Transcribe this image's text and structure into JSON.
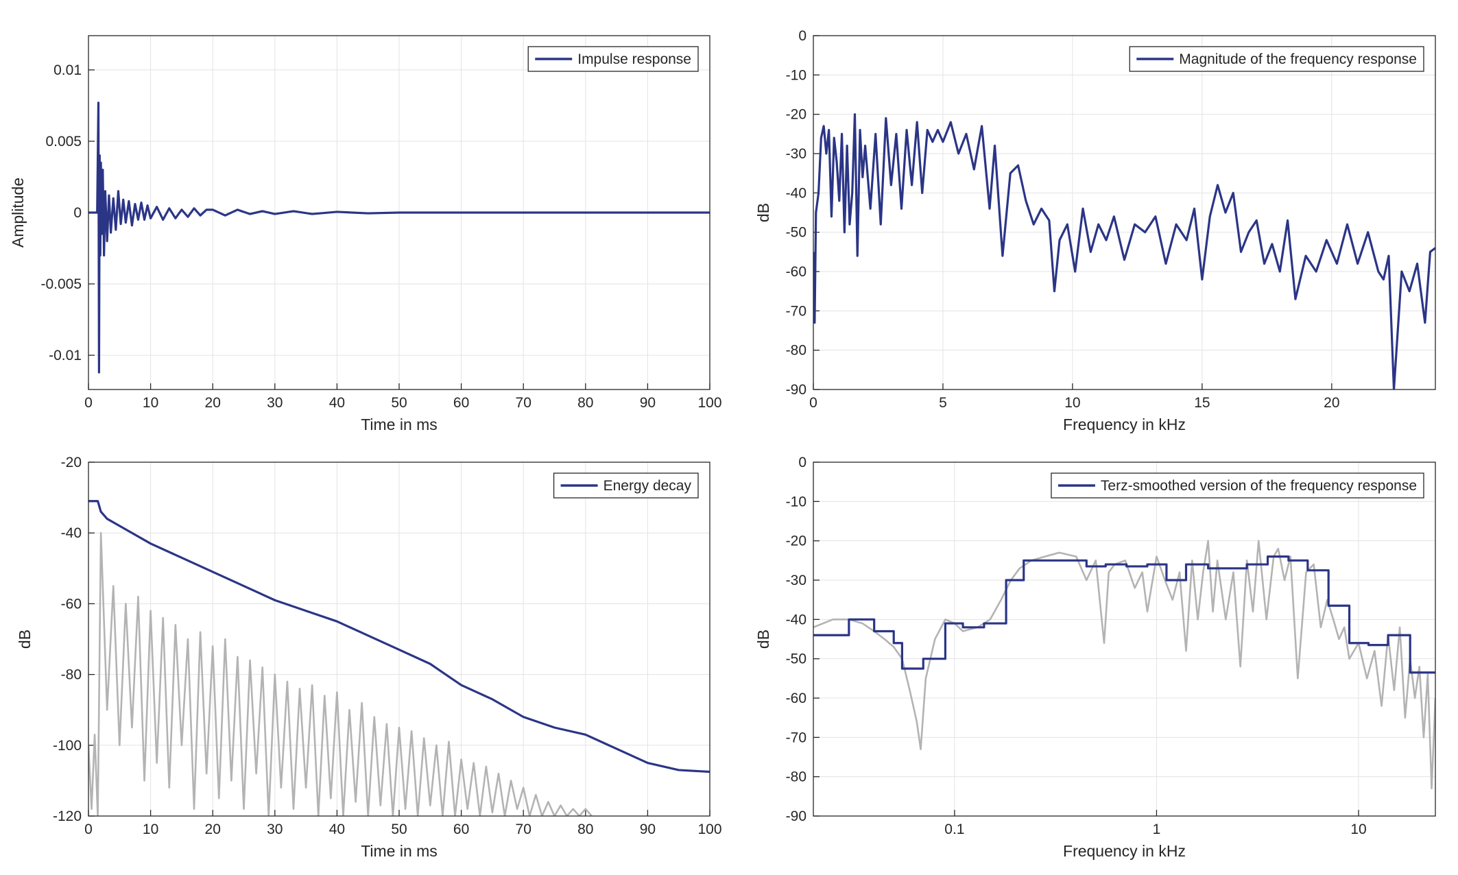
{
  "chart_data": [
    {
      "type": "line",
      "xlabel": "Time in ms",
      "ylabel": "Amplitude",
      "xlim": [
        0,
        100
      ],
      "ylim": [
        -0.0124,
        0.0124
      ],
      "xticks": [
        0,
        10,
        20,
        30,
        40,
        50,
        60,
        70,
        80,
        90,
        100
      ],
      "yticks": [
        -0.01,
        -0.005,
        0,
        0.005,
        0.01
      ],
      "grid": true,
      "legend": "upper right",
      "series": [
        {
          "name": "Impulse response",
          "color": "#2b3586",
          "x": [
            0,
            1.4,
            1.6,
            1.7,
            1.8,
            1.9,
            2.0,
            2.1,
            2.3,
            2.5,
            2.7,
            3.0,
            3.3,
            3.6,
            4.0,
            4.4,
            4.8,
            5.2,
            5.6,
            6.0,
            6.5,
            7,
            7.5,
            8,
            8.5,
            9,
            9.5,
            10,
            11,
            12,
            13,
            14,
            15,
            16,
            17,
            18,
            19,
            20,
            22,
            24,
            26,
            28,
            30,
            33,
            36,
            40,
            45,
            50,
            60,
            70,
            80,
            90,
            100
          ],
          "values": [
            0,
            0,
            0.0077,
            -0.0112,
            0.004,
            -0.003,
            0.0035,
            -0.0015,
            0.003,
            -0.003,
            0.0015,
            -0.002,
            0.0012,
            -0.0014,
            0.001,
            -0.0012,
            0.0015,
            -0.0008,
            0.0009,
            -0.0007,
            0.0008,
            -0.0009,
            0.0006,
            -0.0005,
            0.0007,
            -0.0005,
            0.0005,
            -0.0004,
            0.0004,
            -0.0005,
            0.0003,
            -0.0004,
            0.0002,
            -0.0003,
            0.0003,
            -0.0002,
            0.0002,
            0.0002,
            -0.0002,
            0.0002,
            -0.0001,
            0.0001,
            -0.0001,
            0.0001,
            -0.0001,
            5e-05,
            -5e-05,
            0,
            0,
            0,
            0,
            0,
            0
          ]
        }
      ]
    },
    {
      "type": "line",
      "xlabel": "Frequency in kHz",
      "ylabel": "dB",
      "xlim": [
        0,
        24
      ],
      "ylim": [
        -90,
        0
      ],
      "xticks": [
        0,
        5,
        10,
        15,
        20
      ],
      "yticks": [
        -90,
        -80,
        -70,
        -60,
        -50,
        -40,
        -30,
        -20,
        -10,
        0
      ],
      "grid": true,
      "legend": "upper right",
      "series": [
        {
          "name": "Magnitude of the frequency response",
          "color": "#2b3586",
          "x": [
            0,
            0.05,
            0.1,
            0.2,
            0.3,
            0.4,
            0.5,
            0.6,
            0.7,
            0.8,
            0.9,
            1.0,
            1.1,
            1.2,
            1.3,
            1.4,
            1.5,
            1.6,
            1.7,
            1.8,
            1.9,
            2.0,
            2.2,
            2.4,
            2.6,
            2.8,
            3.0,
            3.2,
            3.4,
            3.6,
            3.8,
            4.0,
            4.2,
            4.4,
            4.6,
            4.8,
            5.0,
            5.3,
            5.6,
            5.9,
            6.2,
            6.5,
            6.8,
            7.0,
            7.3,
            7.6,
            7.9,
            8.2,
            8.5,
            8.8,
            9.1,
            9.3,
            9.5,
            9.8,
            10.1,
            10.4,
            10.7,
            11.0,
            11.3,
            11.6,
            12.0,
            12.4,
            12.8,
            13.2,
            13.6,
            14.0,
            14.4,
            14.7,
            15.0,
            15.3,
            15.6,
            15.9,
            16.2,
            16.5,
            16.8,
            17.1,
            17.4,
            17.7,
            18.0,
            18.3,
            18.6,
            19.0,
            19.4,
            19.8,
            20.2,
            20.6,
            21.0,
            21.4,
            21.8,
            22.0,
            22.2,
            22.4,
            22.7,
            23.0,
            23.3,
            23.6,
            23.8,
            24.0
          ],
          "values": [
            -55,
            -73,
            -45,
            -40,
            -26,
            -23,
            -30,
            -24,
            -46,
            -26,
            -32,
            -42,
            -25,
            -50,
            -28,
            -48,
            -40,
            -20,
            -56,
            -24,
            -36,
            -28,
            -44,
            -25,
            -48,
            -21,
            -38,
            -25,
            -44,
            -24,
            -38,
            -22,
            -40,
            -24,
            -27,
            -24,
            -27,
            -22,
            -30,
            -25,
            -34,
            -23,
            -44,
            -28,
            -56,
            -35,
            -33,
            -42,
            -48,
            -44,
            -47,
            -65,
            -52,
            -48,
            -60,
            -44,
            -55,
            -48,
            -52,
            -46,
            -57,
            -48,
            -50,
            -46,
            -58,
            -48,
            -52,
            -44,
            -62,
            -46,
            -38,
            -45,
            -40,
            -55,
            -50,
            -47,
            -58,
            -53,
            -60,
            -47,
            -67,
            -56,
            -60,
            -52,
            -58,
            -48,
            -58,
            -50,
            -60,
            -62,
            -56,
            -90,
            -60,
            -65,
            -58,
            -73,
            -55,
            -54
          ]
        }
      ]
    },
    {
      "type": "line",
      "xlabel": "Time in ms",
      "ylabel": "dB",
      "xlim": [
        0,
        100
      ],
      "ylim": [
        -120,
        -20
      ],
      "xticks": [
        0,
        10,
        20,
        30,
        40,
        50,
        60,
        70,
        80,
        90,
        100
      ],
      "yticks": [
        -120,
        -100,
        -80,
        -60,
        -40,
        -20
      ],
      "grid": true,
      "legend": "upper right",
      "series": [
        {
          "color": "#b3b3b3",
          "x": [
            0,
            0.5,
            1,
            1.5,
            2,
            3,
            4,
            5,
            6,
            7,
            8,
            9,
            10,
            11,
            12,
            13,
            14,
            15,
            16,
            17,
            18,
            19,
            20,
            21,
            22,
            23,
            24,
            25,
            26,
            27,
            28,
            29,
            30,
            31,
            32,
            33,
            34,
            35,
            36,
            37,
            38,
            39,
            40,
            41,
            42,
            43,
            44,
            45,
            46,
            47,
            48,
            49,
            50,
            51,
            52,
            53,
            54,
            55,
            56,
            57,
            58,
            59,
            60,
            61,
            62,
            63,
            64,
            65,
            66,
            67,
            68,
            69,
            70,
            71,
            72,
            73,
            74,
            75,
            76,
            77,
            78,
            79,
            80,
            81
          ],
          "values": [
            -100,
            -118,
            -97,
            -120,
            -40,
            -90,
            -55,
            -100,
            -60,
            -95,
            -58,
            -110,
            -62,
            -105,
            -64,
            -112,
            -66,
            -100,
            -70,
            -118,
            -68,
            -108,
            -72,
            -115,
            -70,
            -110,
            -75,
            -118,
            -76,
            -108,
            -78,
            -120,
            -80,
            -112,
            -82,
            -118,
            -84,
            -112,
            -83,
            -120,
            -86,
            -115,
            -85,
            -120,
            -90,
            -116,
            -88,
            -120,
            -92,
            -117,
            -94,
            -120,
            -95,
            -118,
            -96,
            -120,
            -98,
            -117,
            -100,
            -120,
            -99,
            -120,
            -104,
            -118,
            -105,
            -120,
            -106,
            -119,
            -108,
            -120,
            -110,
            -118,
            -112,
            -120,
            -114,
            -120,
            -116,
            -120,
            -117,
            -120,
            -118,
            -120,
            -118,
            -120
          ]
        },
        {
          "name": "Energy decay",
          "color": "#2b3586",
          "x": [
            0,
            1.5,
            2,
            3,
            5,
            10,
            15,
            20,
            25,
            30,
            35,
            40,
            45,
            50,
            55,
            60,
            65,
            70,
            75,
            80,
            85,
            90,
            95,
            100
          ],
          "values": [
            -31,
            -31,
            -34,
            -36,
            -38,
            -43,
            -47,
            -51,
            -55,
            -59,
            -62,
            -65,
            -69,
            -73,
            -77,
            -83,
            -87,
            -92,
            -95,
            -97,
            -101,
            -105,
            -107,
            -107.5
          ]
        }
      ]
    },
    {
      "type": "line",
      "xlabel": "Frequency in kHz",
      "ylabel": "dB",
      "xscale": "log",
      "xlim": [
        0.02,
        24
      ],
      "ylim": [
        -90,
        0
      ],
      "xticks": [
        0.1,
        1,
        10
      ],
      "yticks": [
        -90,
        -80,
        -70,
        -60,
        -50,
        -40,
        -30,
        -20,
        -10,
        0
      ],
      "grid": true,
      "legend": "upper right",
      "series": [
        {
          "color": "#b3b3b3",
          "x": [
            0.02,
            0.025,
            0.03,
            0.035,
            0.04,
            0.045,
            0.05,
            0.055,
            0.06,
            0.065,
            0.068,
            0.072,
            0.08,
            0.09,
            0.1,
            0.11,
            0.13,
            0.15,
            0.17,
            0.19,
            0.21,
            0.24,
            0.28,
            0.33,
            0.4,
            0.45,
            0.5,
            0.55,
            0.58,
            0.62,
            0.7,
            0.78,
            0.85,
            0.9,
            1.0,
            1.1,
            1.2,
            1.3,
            1.4,
            1.5,
            1.6,
            1.7,
            1.8,
            1.9,
            2.0,
            2.2,
            2.4,
            2.6,
            2.8,
            3.0,
            3.2,
            3.5,
            3.8,
            4.0,
            4.3,
            4.6,
            5.0,
            5.5,
            6.0,
            6.5,
            7.0,
            7.5,
            8.0,
            8.5,
            9.0,
            10,
            11,
            12,
            13,
            14,
            15,
            16,
            17,
            18,
            19,
            20,
            21,
            22,
            23,
            24
          ],
          "values": [
            -42,
            -40,
            -40,
            -41,
            -43,
            -45,
            -47,
            -50,
            -58,
            -66,
            -73,
            -55,
            -45,
            -40,
            -41,
            -43,
            -42,
            -40,
            -35,
            -30,
            -27,
            -25,
            -24,
            -23,
            -24,
            -30,
            -25,
            -46,
            -28,
            -26,
            -25,
            -32,
            -28,
            -38,
            -24,
            -30,
            -35,
            -28,
            -48,
            -25,
            -40,
            -28,
            -20,
            -38,
            -25,
            -40,
            -28,
            -52,
            -25,
            -38,
            -20,
            -40,
            -24,
            -22,
            -30,
            -24,
            -55,
            -28,
            -26,
            -42,
            -35,
            -40,
            -45,
            -42,
            -50,
            -46,
            -55,
            -48,
            -62,
            -44,
            -58,
            -42,
            -65,
            -50,
            -60,
            -52,
            -70,
            -54,
            -83,
            -60
          ]
        },
        {
          "name": "Terz-smoothed version of the frequency response",
          "color": "#2b3586",
          "x": [
            0.02,
            0.03,
            0.03,
            0.04,
            0.04,
            0.05,
            0.05,
            0.055,
            0.055,
            0.07,
            0.07,
            0.09,
            0.09,
            0.11,
            0.11,
            0.14,
            0.14,
            0.18,
            0.18,
            0.22,
            0.22,
            0.45,
            0.45,
            0.56,
            0.56,
            0.71,
            0.71,
            0.9,
            0.9,
            1.12,
            1.12,
            1.4,
            1.4,
            1.8,
            1.8,
            2.8,
            2.8,
            3.55,
            3.55,
            4.5,
            4.5,
            5.6,
            5.6,
            7.1,
            7.1,
            9,
            9,
            11.2,
            11.2,
            14,
            14,
            18,
            18,
            24
          ],
          "values": [
            -44,
            -44,
            -40,
            -40,
            -43,
            -43,
            -46,
            -46,
            -52.5,
            -52.5,
            -50,
            -50,
            -41,
            -41,
            -42,
            -42,
            -41,
            -41,
            -30,
            -30,
            -25,
            -25,
            -26.5,
            -26.5,
            -26,
            -26,
            -26.5,
            -26.5,
            -26,
            -26,
            -30,
            -30,
            -26,
            -26,
            -27,
            -27,
            -26,
            -26,
            -24,
            -24,
            -25,
            -25,
            -27.5,
            -27.5,
            -36.5,
            -36.5,
            -46,
            -46,
            -46.5,
            -46.5,
            -44,
            -44,
            -53.5,
            -53.5
          ]
        }
      ]
    }
  ]
}
